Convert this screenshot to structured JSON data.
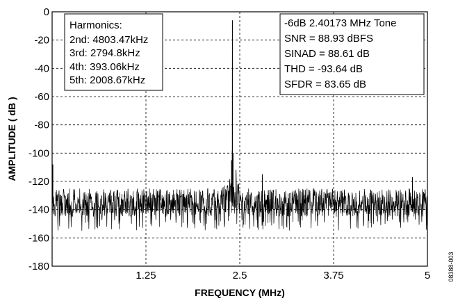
{
  "figure_id": "08388-003",
  "chart_data": {
    "type": "line",
    "title": "",
    "xlabel": "FREQUENCY (MHz)",
    "ylabel": "AMPLITUDE ( dB )",
    "xlim": [
      0,
      5
    ],
    "ylim": [
      -180,
      0
    ],
    "x_ticks": [
      1.25,
      2.5,
      3.75,
      5
    ],
    "x_tick_labels": [
      "1.25",
      "2.5",
      "3.75",
      "5"
    ],
    "y_ticks": [
      0,
      -20,
      -40,
      -60,
      -80,
      -100,
      -120,
      -140,
      -160,
      -180
    ],
    "y_tick_labels": [
      "0",
      "-20",
      "-40",
      "-60",
      "-80",
      "-100",
      "-120",
      "-140",
      "-160",
      "-180"
    ],
    "grid": true,
    "noise_floor": {
      "upper_db": -125,
      "median_db": -135,
      "lower_db": -155
    },
    "series": [
      {
        "values_note": "",
        "x": [
          0.0,
          0.01,
          2.3,
          2.39,
          2.4,
          2.40173,
          2.41,
          2.45,
          2.6,
          2.75,
          2.8,
          4.8,
          5.0
        ],
        "y": [
          -135,
          -108,
          -123,
          -105,
          -98,
          -6,
          -100,
          -112,
          -128,
          -135,
          -115,
          -117,
          -135
        ]
      }
    ],
    "annotations": {
      "harmonics": {
        "heading": "Harmonics:",
        "lines": [
          "2nd: 4803.47kHz",
          "3rd: 2794.8kHz",
          "4th: 393.06kHz",
          "5th: 2008.67kHz"
        ]
      },
      "metrics": {
        "lines": [
          "-6dB 2.40173 MHz Tone",
          "SNR = 88.93 dBFS",
          "SINAD = 88.61 dB",
          "THD = -93.64 dB",
          "SFDR = 83.65 dB"
        ]
      }
    }
  }
}
